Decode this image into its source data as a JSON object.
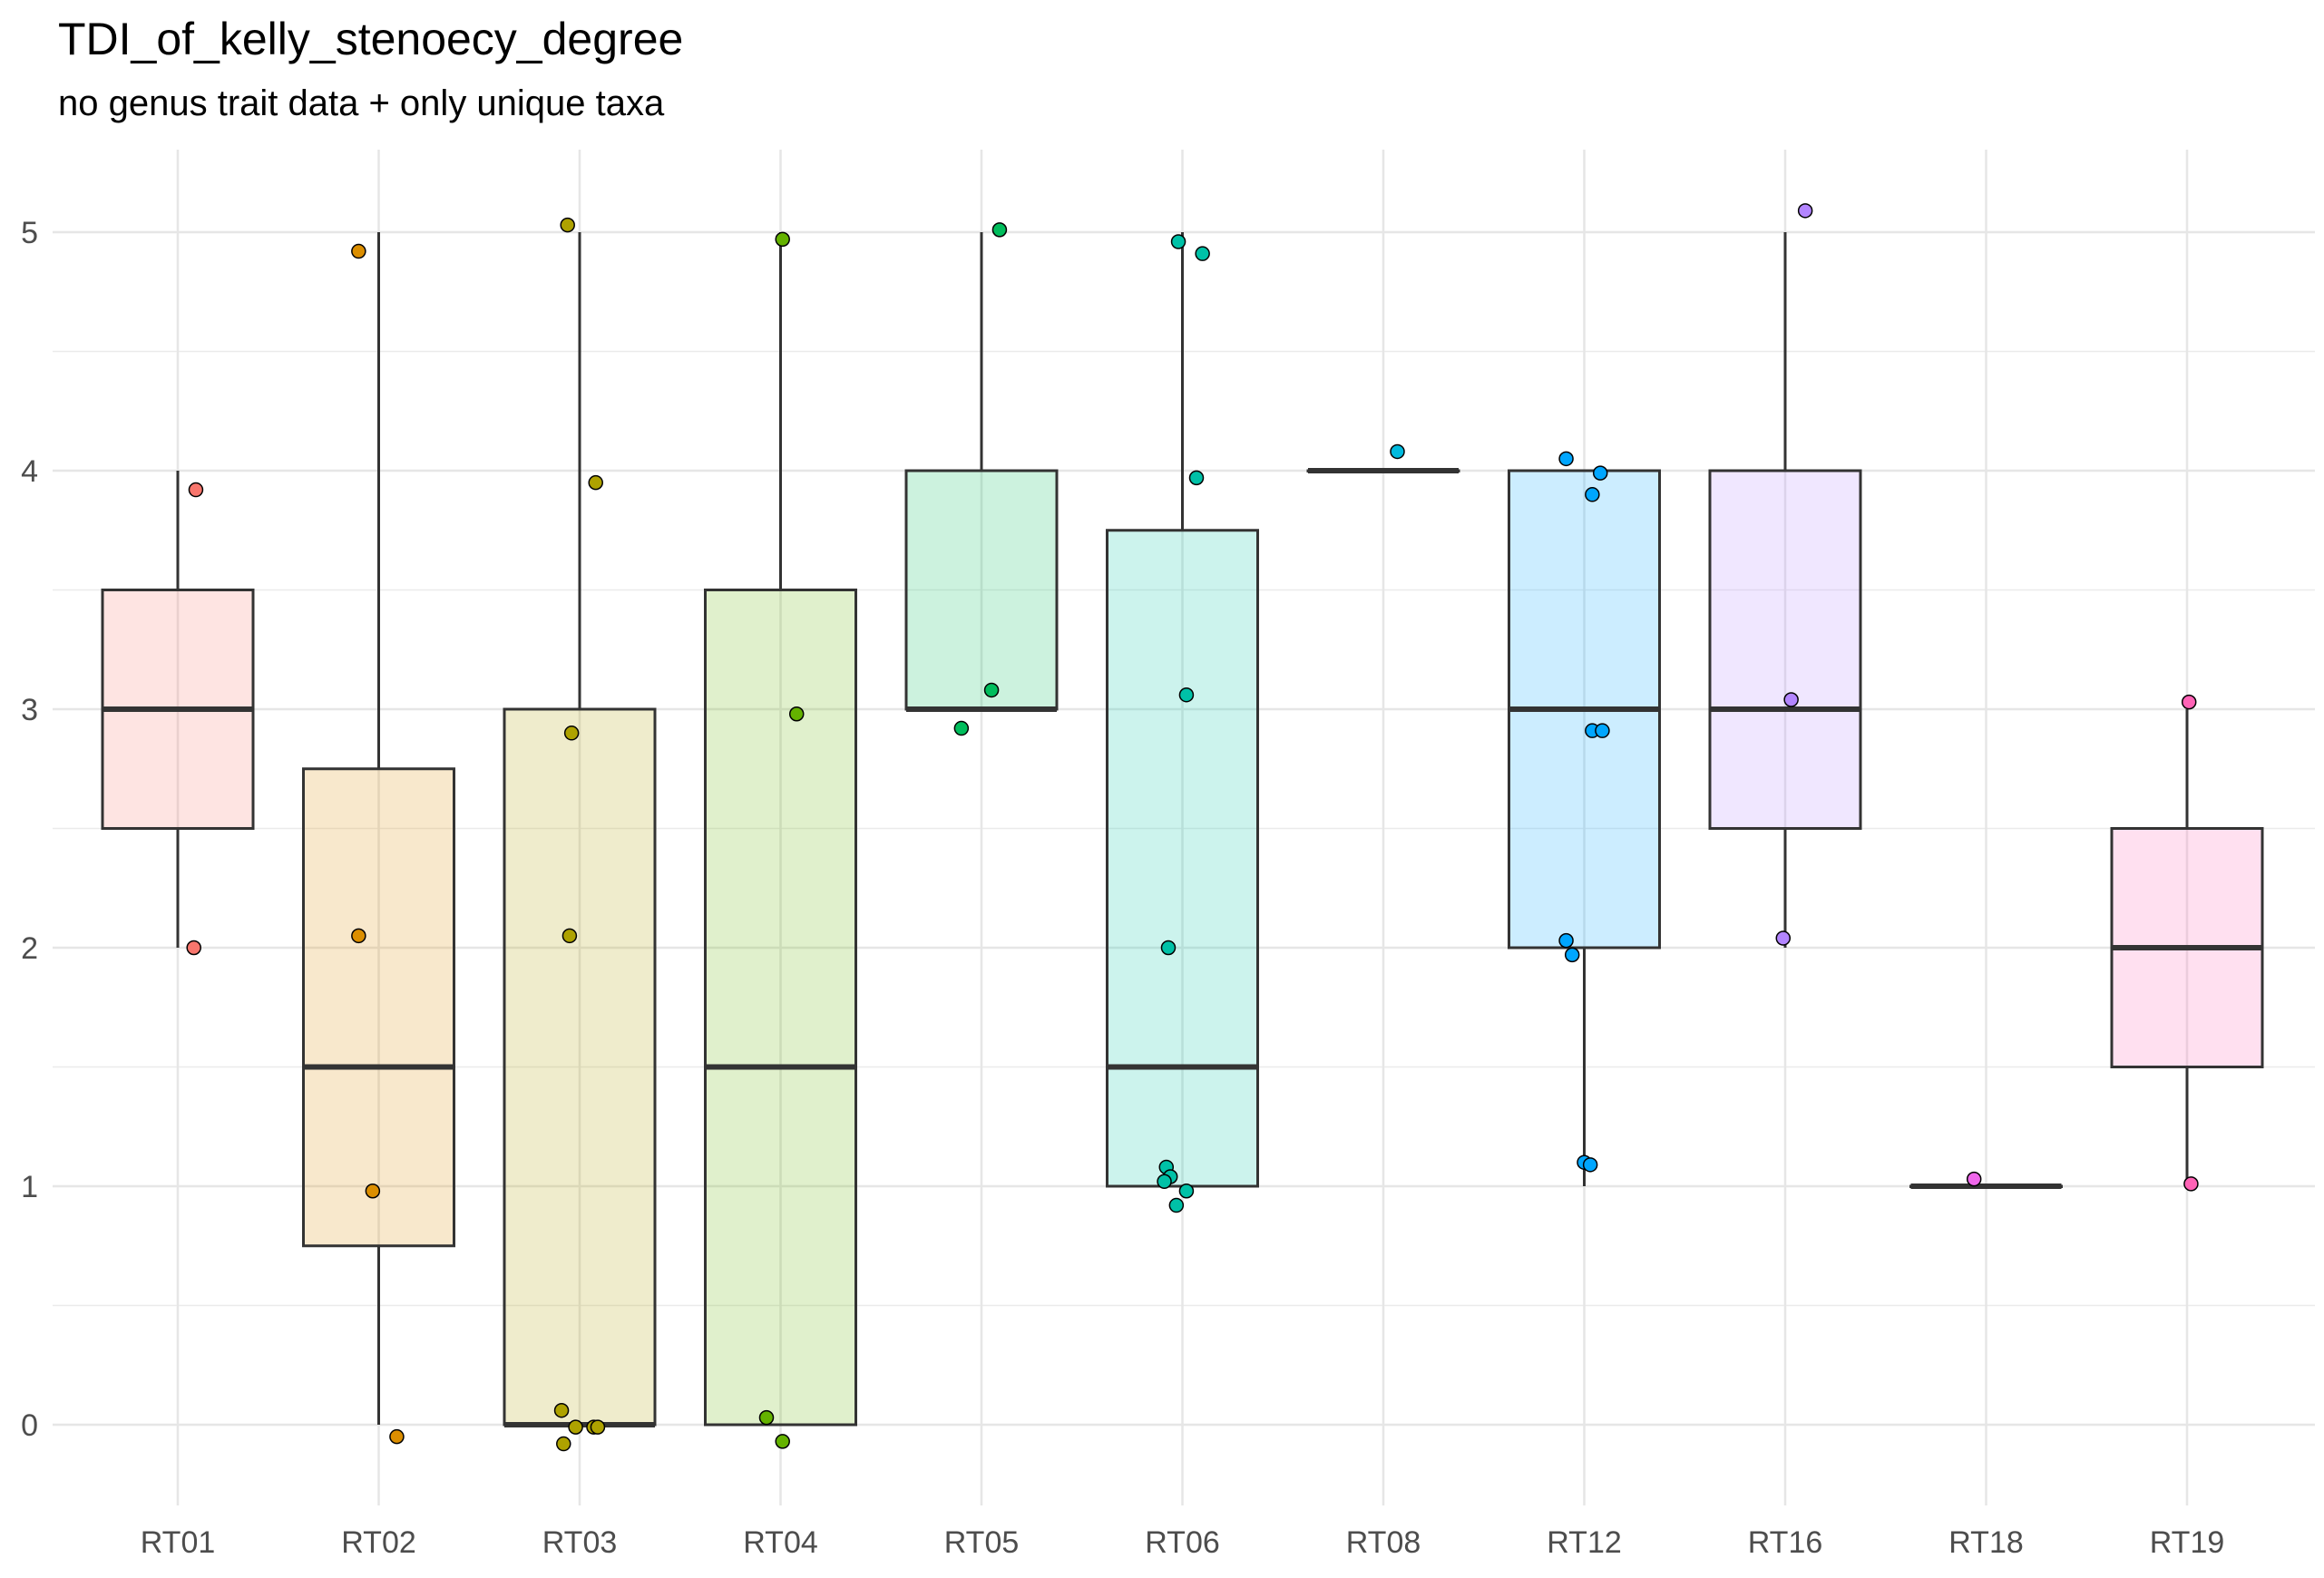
{
  "chart_data": {
    "type": "boxplot",
    "title": "TDI_of_kelly_stenoecy_degree",
    "subtitle": "no genus trait data + only unique taxa",
    "xlabel": "",
    "ylabel": "",
    "ylim": [
      -0.3,
      5.35
    ],
    "yticks": [
      0,
      1,
      2,
      3,
      4,
      5
    ],
    "grid": true,
    "legend": "none",
    "categories": [
      "RT01",
      "RT02",
      "RT03",
      "RT04",
      "RT05",
      "RT06",
      "RT08",
      "RT12",
      "RT16",
      "RT18",
      "RT19"
    ],
    "boxes": [
      {
        "category": "RT01",
        "color": "#F8766D",
        "min": 2,
        "q1": 2.5,
        "median": 3,
        "q3": 3.5,
        "max": 4,
        "points": [
          [
            0.09,
            3.92
          ],
          [
            0.08,
            2.0
          ]
        ]
      },
      {
        "category": "RT02",
        "color": "#DB8E00",
        "min": 0,
        "q1": 0.75,
        "median": 1.5,
        "q3": 2.75,
        "max": 5,
        "points": [
          [
            -0.1,
            4.92
          ],
          [
            -0.1,
            2.05
          ],
          [
            -0.03,
            0.98
          ],
          [
            0.09,
            -0.05
          ]
        ]
      },
      {
        "category": "RT03",
        "color": "#AEA200",
        "min": 0,
        "q1": 0,
        "median": 0,
        "q3": 3,
        "max": 5,
        "points": [
          [
            -0.06,
            5.03
          ],
          [
            0.08,
            3.95
          ],
          [
            -0.04,
            2.9
          ],
          [
            -0.05,
            2.05
          ],
          [
            -0.09,
            0.06
          ],
          [
            -0.02,
            -0.01
          ],
          [
            0.07,
            -0.01
          ],
          [
            0.09,
            -0.01
          ],
          [
            -0.08,
            -0.08
          ]
        ]
      },
      {
        "category": "RT04",
        "color": "#64B200",
        "min": 0,
        "q1": 0,
        "median": 1.5,
        "q3": 3.5,
        "max": 5,
        "points": [
          [
            0.01,
            4.97
          ],
          [
            0.08,
            2.98
          ],
          [
            -0.07,
            0.03
          ],
          [
            0.01,
            -0.07
          ]
        ]
      },
      {
        "category": "RT05",
        "color": "#00BD5C",
        "min": 3,
        "q1": 3,
        "median": 3,
        "q3": 4,
        "max": 5,
        "points": [
          [
            0.09,
            5.01
          ],
          [
            0.05,
            3.08
          ],
          [
            -0.1,
            2.92
          ]
        ]
      },
      {
        "category": "RT06",
        "color": "#00C1A7",
        "min": 1,
        "q1": 1,
        "median": 1.5,
        "q3": 3.75,
        "max": 5,
        "points": [
          [
            -0.02,
            4.96
          ],
          [
            0.1,
            4.91
          ],
          [
            0.07,
            3.97
          ],
          [
            0.02,
            3.06
          ],
          [
            -0.07,
            2.0
          ],
          [
            -0.08,
            1.08
          ],
          [
            -0.06,
            1.04
          ],
          [
            -0.09,
            1.02
          ],
          [
            0.02,
            0.98
          ],
          [
            -0.03,
            0.92
          ]
        ]
      },
      {
        "category": "RT08",
        "color": "#00BADE",
        "min": 4,
        "q1": 4,
        "median": 4,
        "q3": 4,
        "max": 4,
        "points": [
          [
            0.07,
            4.08
          ]
        ]
      },
      {
        "category": "RT12",
        "color": "#00A6FF",
        "min": 1,
        "q1": 2,
        "median": 3,
        "q3": 4,
        "max": 4,
        "points": [
          [
            -0.09,
            4.05
          ],
          [
            0.08,
            3.99
          ],
          [
            0.04,
            3.9
          ],
          [
            0.04,
            2.91
          ],
          [
            0.09,
            2.91
          ],
          [
            -0.09,
            2.03
          ],
          [
            -0.06,
            1.97
          ],
          [
            0.0,
            1.1
          ],
          [
            0.03,
            1.09
          ]
        ]
      },
      {
        "category": "RT16",
        "color": "#B385FF",
        "min": 2,
        "q1": 2.5,
        "median": 3,
        "q3": 4,
        "max": 5,
        "points": [
          [
            0.1,
            5.09
          ],
          [
            0.03,
            3.04
          ],
          [
            -0.01,
            2.04
          ]
        ]
      },
      {
        "category": "RT18",
        "color": "#EF67EB",
        "min": 1,
        "q1": 1,
        "median": 1,
        "q3": 1,
        "max": 1,
        "points": [
          [
            -0.06,
            1.03
          ]
        ]
      },
      {
        "category": "RT19",
        "color": "#FF63B6",
        "min": 1,
        "q1": 1.5,
        "median": 2,
        "q3": 2.5,
        "max": 3,
        "points": [
          [
            0.01,
            3.03
          ],
          [
            0.02,
            1.01
          ]
        ]
      }
    ]
  }
}
